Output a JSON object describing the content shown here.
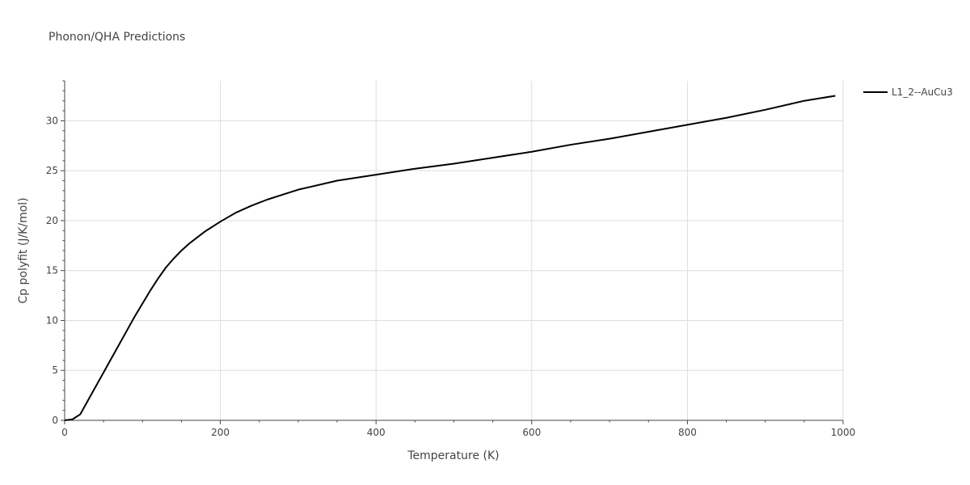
{
  "chart_data": {
    "type": "line",
    "title": "Phonon/QHA Predictions",
    "xlabel": "Temperature (K)",
    "ylabel": "Cp polyfit (J/K/mol)",
    "xlim": [
      0,
      1000
    ],
    "ylim": [
      0,
      34
    ],
    "x_ticks": [
      0,
      200,
      400,
      600,
      800,
      1000
    ],
    "y_ticks": [
      0,
      5,
      10,
      15,
      20,
      25,
      30
    ],
    "grid": true,
    "legend": "top-right",
    "series": [
      {
        "name": "L1_2--AuCu3",
        "color": "#000000",
        "x": [
          0,
          10,
          20,
          30,
          40,
          50,
          60,
          70,
          80,
          90,
          100,
          110,
          120,
          130,
          140,
          150,
          160,
          170,
          180,
          190,
          200,
          220,
          240,
          260,
          280,
          300,
          350,
          400,
          450,
          500,
          550,
          600,
          650,
          700,
          750,
          800,
          850,
          900,
          950,
          990
        ],
        "y": [
          0,
          0.1,
          0.6,
          2.0,
          3.4,
          4.8,
          6.2,
          7.6,
          9.0,
          10.4,
          11.7,
          13.0,
          14.2,
          15.3,
          16.2,
          17.0,
          17.7,
          18.3,
          18.9,
          19.4,
          19.9,
          20.8,
          21.5,
          22.1,
          22.6,
          23.1,
          24.0,
          24.6,
          25.2,
          25.7,
          26.3,
          26.9,
          27.6,
          28.2,
          28.9,
          29.6,
          30.3,
          31.1,
          32.0,
          32.5
        ]
      }
    ]
  }
}
